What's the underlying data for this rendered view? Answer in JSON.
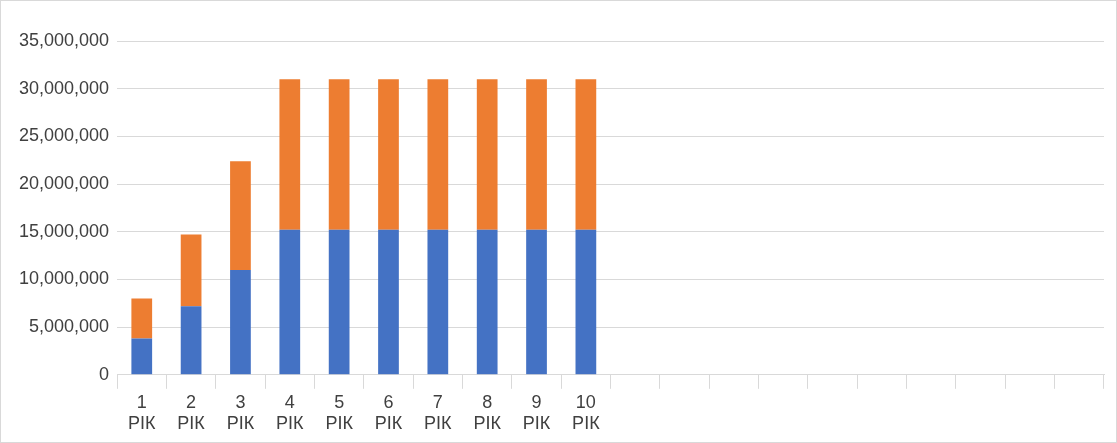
{
  "chart_data": {
    "type": "bar",
    "stacked": true,
    "categories": [
      "1 РІК",
      "2 РІК",
      "3 РІК",
      "4 РІК",
      "5 РІК",
      "6 РІК",
      "7 РІК",
      "8 РІК",
      "9 РІК",
      "10 РІК",
      null,
      null,
      null,
      null,
      null,
      null,
      null,
      null,
      null,
      null
    ],
    "series": [
      {
        "color": "#4472c4",
        "values": [
          3800000,
          7200000,
          11000000,
          15200000,
          15200000,
          15200000,
          15200000,
          15200000,
          15200000,
          15200000,
          null,
          null,
          null,
          null,
          null,
          null,
          null,
          null,
          null,
          null
        ]
      },
      {
        "color": "#ed7d31",
        "values": [
          4200000,
          7500000,
          11400000,
          15800000,
          15800000,
          15800000,
          15800000,
          15800000,
          15800000,
          15800000,
          null,
          null,
          null,
          null,
          null,
          null,
          null,
          null,
          null,
          null
        ]
      }
    ],
    "ylim": [
      0,
      35000000
    ],
    "yticks": [
      0,
      {
        "value": 5000000,
        "label": "5,000,000"
      },
      {
        "value": 10000000,
        "label": "10,000,000"
      },
      {
        "value": 15000000,
        "label": "15,000,000"
      },
      {
        "value": 20000000,
        "label": "20,000,000"
      },
      {
        "value": 25000000,
        "label": "25,000,000"
      },
      {
        "value": 30000000,
        "label": "30,000,000"
      },
      {
        "value": 35000000,
        "label": "35,000,000"
      }
    ],
    "grid": "y",
    "legend": false
  }
}
